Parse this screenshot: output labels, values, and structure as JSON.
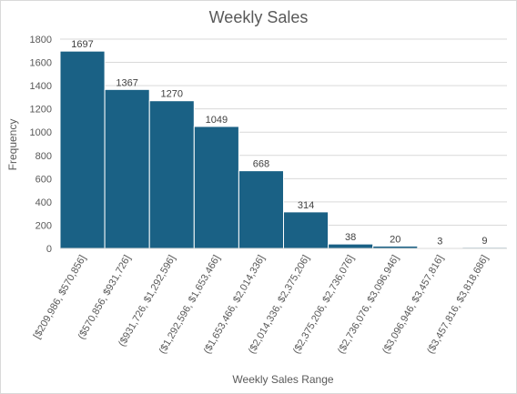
{
  "chart_data": {
    "type": "bar",
    "title": "Weekly Sales",
    "xlabel": "Weekly Sales Range",
    "ylabel": "Frequency",
    "ylim": [
      0,
      1800
    ],
    "yticks": [
      "0",
      "200",
      "400",
      "600",
      "800",
      "1000",
      "1200",
      "1400",
      "1600",
      "1800"
    ],
    "grid": true,
    "legend": "none",
    "colors": {
      "bar": "#1a6185",
      "bar_edge": "#ffffff",
      "grid": "#d9d9d9",
      "text": "#595959"
    },
    "categories": [
      "[$209,986, $570,856]",
      "($570,856, $931,726]",
      "($931,726, $1,292,596]",
      "($1,292,596, $1,653,466]",
      "($1,653,466, $2,014,336]",
      "($2,014,336, $2,375,206]",
      "($2,375,206, $2,736,076]",
      "($2,736,076, $3,096,946]",
      "($3,096,946, $3,457,816]",
      "($3,457,816, $3,818,686]"
    ],
    "values": [
      1697,
      1367,
      1270,
      1049,
      668,
      314,
      38,
      20,
      3,
      9
    ],
    "data_labels": [
      "1697",
      "1367",
      "1270",
      "1049",
      "668",
      "314",
      "38",
      "20",
      "3",
      "9"
    ]
  }
}
